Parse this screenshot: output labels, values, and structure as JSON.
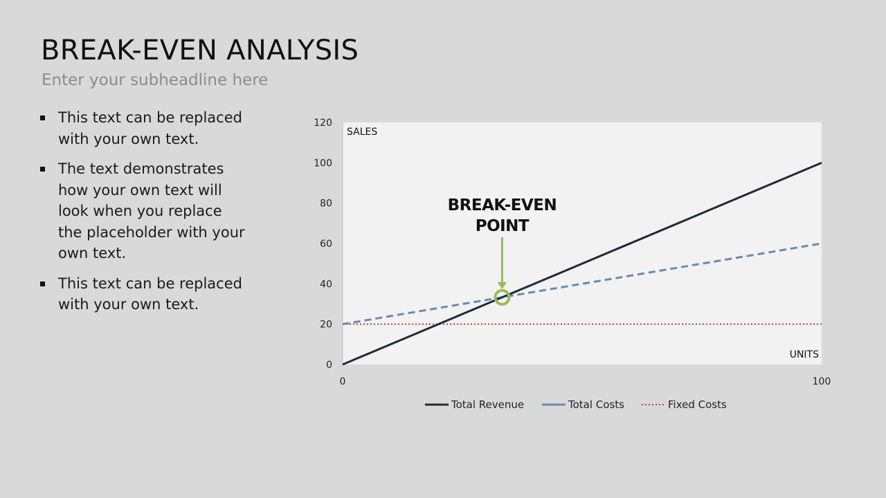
{
  "slide": {
    "title": "BREAK-EVEN ANALYSIS",
    "subtitle": "Enter your subheadline here",
    "bullets": [
      "This text can be replaced with your own text.",
      "The text demonstrates how your own text will look when you replace the placeholder with your own text.",
      "This text can be replaced with your own text."
    ]
  },
  "chart_data": {
    "type": "line",
    "ylabel": "SALES",
    "xlabel": "UNITS",
    "xlim": [
      0,
      100
    ],
    "ylim": [
      0,
      120
    ],
    "x_ticks": [
      0,
      100
    ],
    "y_ticks": [
      0,
      20,
      40,
      60,
      80,
      100,
      120
    ],
    "grid": false,
    "legend_position": "bottom",
    "series": [
      {
        "name": "Total Revenue",
        "x": [
          0,
          100
        ],
        "y": [
          0,
          100
        ],
        "color": "#1f2a38",
        "style": "solid"
      },
      {
        "name": "Total Costs",
        "x": [
          0,
          100
        ],
        "y": [
          20,
          60
        ],
        "color": "#6a89b0",
        "style": "dashed"
      },
      {
        "name": "Fixed Costs",
        "x": [
          0,
          100
        ],
        "y": [
          20,
          20
        ],
        "color": "#c0392b",
        "style": "dotted"
      }
    ],
    "annotation": {
      "text_lines": [
        "BREAK-EVEN",
        "POINT"
      ],
      "x": 33.3,
      "y": 33.3,
      "color": "#9bbb59"
    }
  }
}
